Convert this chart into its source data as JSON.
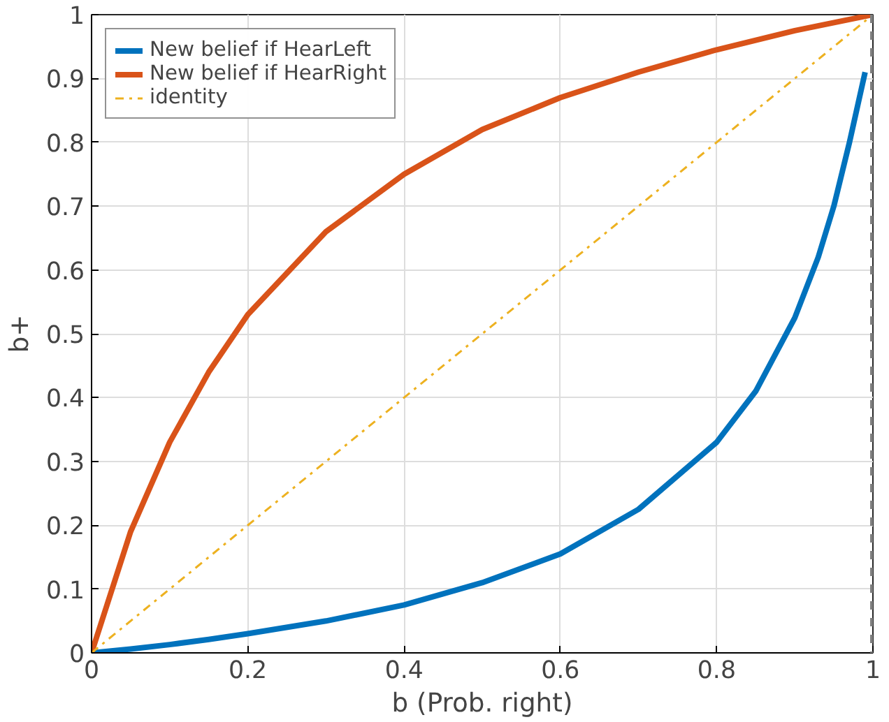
{
  "chart_data": {
    "type": "line",
    "xlabel": "b (Prob. right)",
    "ylabel": "b+",
    "xlim": [
      0,
      1
    ],
    "ylim": [
      0,
      1
    ],
    "xticks": [
      0,
      0.2,
      0.4,
      0.6,
      0.8,
      1
    ],
    "yticks": [
      0,
      0.1,
      0.2,
      0.3,
      0.4,
      0.5,
      0.6,
      0.7,
      0.8,
      0.9,
      1
    ],
    "grid": true,
    "legend": "top left",
    "line_style": "solid",
    "series": [
      {
        "name": "New belief if HearLeft",
        "color": "#0072bd",
        "x": [
          0,
          0.05,
          0.1,
          0.15,
          0.2,
          0.3,
          0.4,
          0.5,
          0.6,
          0.7,
          0.8,
          0.85,
          0.9,
          0.93,
          0.95,
          0.97,
          0.99
        ],
        "values": [
          0,
          0.006,
          0.013,
          0.021,
          0.03,
          0.05,
          0.075,
          0.11,
          0.155,
          0.225,
          0.33,
          0.41,
          0.525,
          0.62,
          0.7,
          0.8,
          0.91
        ]
      },
      {
        "name": "New belief if HearRight",
        "color": "#d95319",
        "x": [
          0,
          0.05,
          0.1,
          0.15,
          0.2,
          0.3,
          0.4,
          0.5,
          0.6,
          0.7,
          0.8,
          0.9,
          1
        ],
        "values": [
          0,
          0.19,
          0.33,
          0.44,
          0.53,
          0.66,
          0.75,
          0.82,
          0.87,
          0.91,
          0.945,
          0.975,
          1
        ]
      },
      {
        "name": "identity",
        "color": "#edb120",
        "line_style": "dashdot",
        "x": [
          0,
          1
        ],
        "values": [
          0,
          1
        ]
      }
    ],
    "ref_lines": [
      {
        "axis": "x",
        "value": 1,
        "color": "#808080",
        "line_style": "dashed"
      }
    ]
  }
}
